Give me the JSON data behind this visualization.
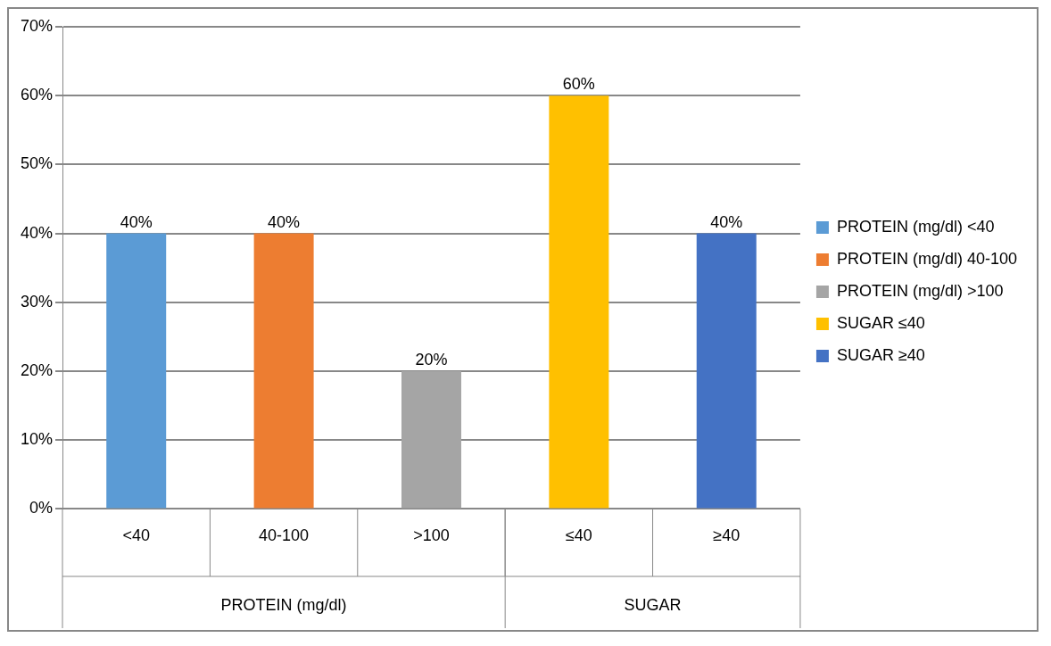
{
  "chart_data": {
    "type": "bar",
    "categories": [
      "<40",
      "40-100",
      ">100",
      "≤40",
      "≥40"
    ],
    "series": [
      {
        "name": "PROTEIN (mg/dl) <40",
        "color": "#5b9bd5",
        "values": [
          40,
          null,
          null,
          null,
          null
        ],
        "value_labels": [
          "40%",
          null,
          null,
          null,
          null
        ]
      },
      {
        "name": "PROTEIN (mg/dl) 40-100",
        "color": "#ed7d31",
        "values": [
          null,
          40,
          null,
          null,
          null
        ],
        "value_labels": [
          null,
          "40%",
          null,
          null,
          null
        ]
      },
      {
        "name": "PROTEIN (mg/dl) >100",
        "color": "#a5a5a5",
        "values": [
          null,
          null,
          20,
          null,
          null
        ],
        "value_labels": [
          null,
          null,
          "20%",
          null,
          null
        ]
      },
      {
        "name": "SUGAR ≤40",
        "color": "#ffc000",
        "values": [
          null,
          null,
          null,
          60,
          null
        ],
        "value_labels": [
          null,
          null,
          null,
          "60%",
          null
        ]
      },
      {
        "name": "SUGAR ≥40",
        "color": "#4472c4",
        "values": [
          null,
          null,
          null,
          null,
          40
        ],
        "value_labels": [
          null,
          null,
          null,
          null,
          "40%"
        ]
      }
    ],
    "annotations": [
      "PROTEIN (mg/dl)",
      "SUGAR"
    ],
    "ylim": [
      0,
      70
    ],
    "yticks": [
      {
        "value": 0,
        "label": "0%"
      },
      {
        "value": 10,
        "label": "10%"
      },
      {
        "value": 20,
        "label": "20%"
      },
      {
        "value": 30,
        "label": "30%"
      },
      {
        "value": 40,
        "label": "40%"
      },
      {
        "value": 50,
        "label": "50%"
      },
      {
        "value": 60,
        "label": "60%"
      },
      {
        "value": 70,
        "label": "70%"
      }
    ],
    "grid": "y",
    "legend": "right"
  }
}
